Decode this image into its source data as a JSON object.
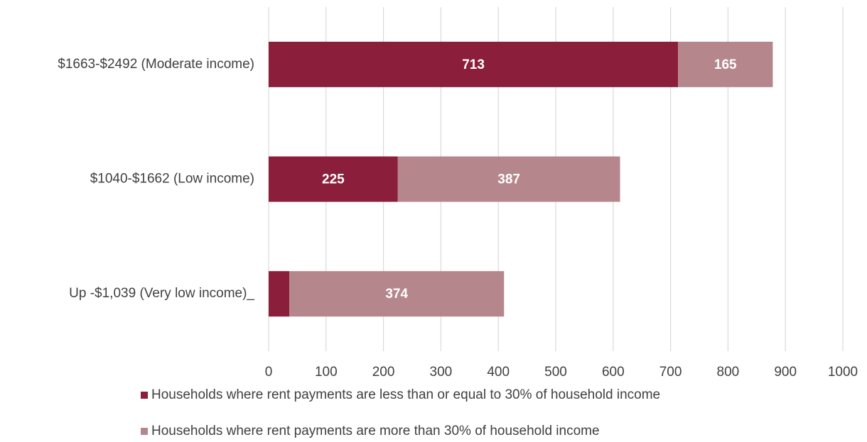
{
  "chart_data": {
    "type": "bar",
    "orientation": "horizontal",
    "stacked": true,
    "categories": [
      "$1663-$2492 (Moderate income)",
      "$1040-$1662 (Low income)",
      "Up -$1,039 (Very low income)_"
    ],
    "series": [
      {
        "name": "Households where rent payments are less than or equal to 30% of household income",
        "color": "#8b1e3a",
        "values": [
          713,
          225,
          36
        ]
      },
      {
        "name": "Households where rent payments are more than 30% of household income",
        "color": "#b5878c",
        "values": [
          165,
          387,
          374
        ]
      }
    ],
    "xlim": [
      0,
      1000
    ],
    "xticks": [
      0,
      100,
      200,
      300,
      400,
      500,
      600,
      700,
      800,
      900,
      1000
    ],
    "grid": true,
    "legend": "bottom",
    "data_labels": true
  }
}
